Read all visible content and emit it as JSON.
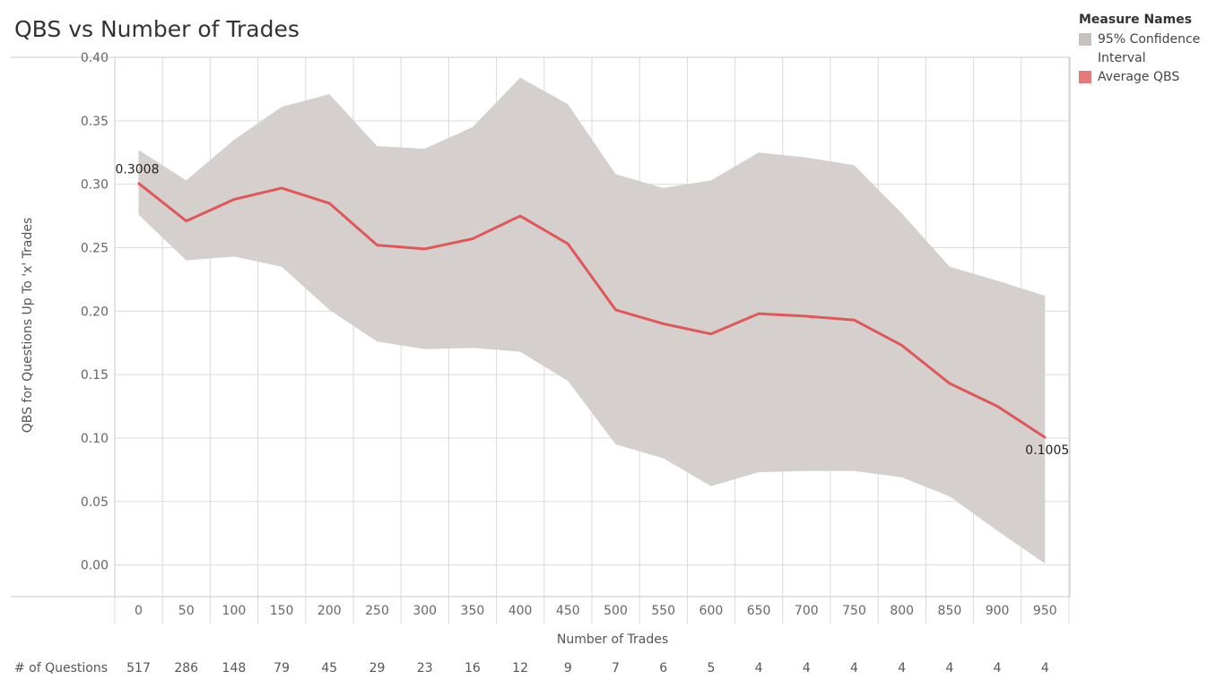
{
  "chart_data": {
    "type": "line",
    "title": "QBS vs Number of Trades",
    "xlabel": "Number of Trades",
    "ylabel": "QBS for Questions Up To 'x' Trades",
    "x": [
      0,
      50,
      100,
      150,
      200,
      250,
      300,
      350,
      400,
      450,
      500,
      550,
      600,
      650,
      700,
      750,
      800,
      850,
      900,
      950
    ],
    "ylim": [
      -0.025,
      0.4
    ],
    "yticks": [
      "0.40",
      "0.35",
      "0.30",
      "0.25",
      "0.20",
      "0.15",
      "0.10",
      "0.05",
      "0.00"
    ],
    "ytick_values": [
      0.4,
      0.35,
      0.3,
      0.25,
      0.2,
      0.15,
      0.1,
      0.05,
      0.0
    ],
    "series": [
      {
        "name": "Average QBS",
        "color": "#e15759",
        "values": [
          0.3008,
          0.271,
          0.288,
          0.297,
          0.285,
          0.252,
          0.249,
          0.257,
          0.275,
          0.253,
          0.201,
          0.19,
          0.182,
          0.198,
          0.196,
          0.193,
          0.173,
          0.143,
          0.125,
          0.1005
        ]
      },
      {
        "name": "95% Confidence Interval",
        "color": "#d3cdcb",
        "type": "band",
        "upper": [
          0.327,
          0.303,
          0.335,
          0.361,
          0.371,
          0.33,
          0.328,
          0.345,
          0.384,
          0.363,
          0.308,
          0.297,
          0.303,
          0.325,
          0.321,
          0.315,
          0.277,
          0.235,
          0.224,
          0.212
        ],
        "lower": [
          0.276,
          0.24,
          0.243,
          0.235,
          0.201,
          0.176,
          0.17,
          0.171,
          0.168,
          0.145,
          0.095,
          0.084,
          0.062,
          0.073,
          0.074,
          0.074,
          0.069,
          0.054,
          0.027,
          0.001
        ]
      }
    ],
    "data_labels": [
      {
        "text": "0.3008",
        "index": 0
      },
      {
        "text": "0.1005",
        "index": 19
      }
    ],
    "footer": {
      "label": "# of Questions",
      "values": [
        "517",
        "286",
        "148",
        "79",
        "45",
        "29",
        "23",
        "16",
        "12",
        "9",
        "7",
        "6",
        "5",
        "4",
        "4",
        "4",
        "4",
        "4",
        "4",
        "4"
      ]
    },
    "legend": {
      "title": "Measure Names",
      "position": "top-right",
      "items": [
        {
          "label": "95% Confidence Interval",
          "color": "#c9c1be"
        },
        {
          "label": "Average QBS",
          "color": "#e8797a"
        }
      ]
    },
    "grid": true
  }
}
